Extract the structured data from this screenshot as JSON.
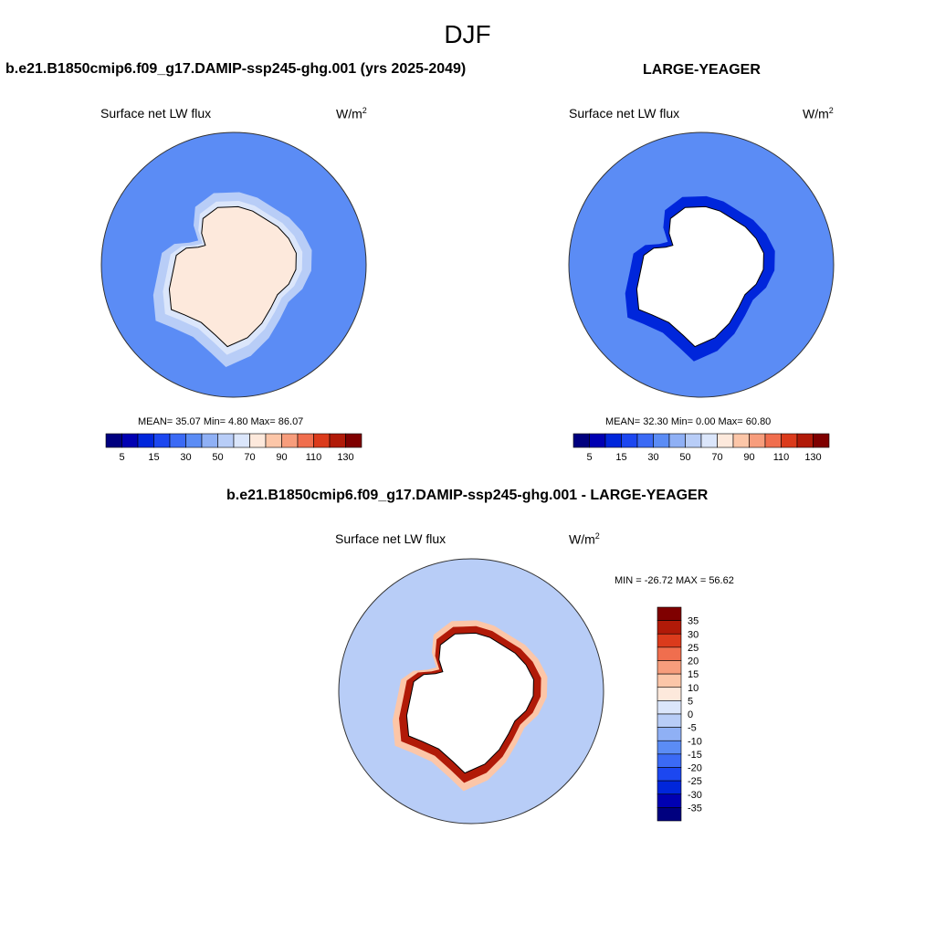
{
  "figure": {
    "title": "DJF"
  },
  "panels": [
    {
      "id": "model",
      "title": "b.e21.B1850cmip6.f09_g17.DAMIP-ssp245-ghg.001 (yrs 2025-2049)",
      "variable": "Surface net LW flux",
      "units_base": "W/m",
      "units_exp": "2",
      "stats_text": "MEAN=  35.07  Min=   4.80  Max=  86.07"
    },
    {
      "id": "obs",
      "title": "LARGE-YEAGER",
      "variable": "Surface net LW flux",
      "units_base": "W/m",
      "units_exp": "2",
      "stats_text": "MEAN=  32.30  Min=   0.00  Max=  60.80"
    },
    {
      "id": "diff",
      "title": "b.e21.B1850cmip6.f09_g17.DAMIP-ssp245-ghg.001 - LARGE-YEAGER",
      "variable": "Surface net LW flux",
      "units_base": "W/m",
      "units_exp": "2",
      "stats_text": "MIN = -26.72 MAX =  56.62"
    }
  ],
  "chart_data": [
    {
      "type": "heatmap",
      "projection": "south polar stereographic",
      "title": "b.e21.B1850cmip6.f09_g17.DAMIP-ssp245-ghg.001 (yrs 2025-2049)",
      "variable": "Surface net LW flux",
      "units": "W/m2",
      "mean": 35.07,
      "min": 4.8,
      "max": 86.07,
      "colorbar": {
        "orientation": "horizontal",
        "levels": [
          5,
          10,
          15,
          20,
          30,
          40,
          50,
          60,
          70,
          80,
          90,
          100,
          110,
          120,
          130
        ],
        "tick_labels": [
          "5",
          "15",
          "30",
          "50",
          "70",
          "90",
          "110",
          "130"
        ],
        "colors": [
          "#00007f",
          "#0000b2",
          "#0026db",
          "#1c47f0",
          "#3b6af5",
          "#5b8cf5",
          "#8fb0f5",
          "#b8cdf7",
          "#dbe6fb",
          "#fde9dc",
          "#fcc6a8",
          "#f79d7c",
          "#f06e4e",
          "#db3b1c",
          "#b11a08",
          "#7f0000"
        ]
      },
      "dominant_values": {
        "ocean": 30,
        "sea_ice_margin": 50,
        "antarctic_continent": 70
      }
    },
    {
      "type": "heatmap",
      "projection": "south polar stereographic",
      "title": "LARGE-YEAGER",
      "variable": "Surface net LW flux",
      "units": "W/m2",
      "mean": 32.3,
      "min": 0.0,
      "max": 60.8,
      "colorbar": {
        "orientation": "horizontal",
        "levels": [
          5,
          10,
          15,
          20,
          30,
          40,
          50,
          60,
          70,
          80,
          90,
          100,
          110,
          120,
          130
        ],
        "tick_labels": [
          "5",
          "15",
          "30",
          "50",
          "70",
          "90",
          "110",
          "130"
        ],
        "colors": [
          "#00007f",
          "#0000b2",
          "#0026db",
          "#1c47f0",
          "#3b6af5",
          "#5b8cf5",
          "#8fb0f5",
          "#b8cdf7",
          "#dbe6fb",
          "#fde9dc",
          "#fcc6a8",
          "#f79d7c",
          "#f06e4e",
          "#db3b1c",
          "#b11a08",
          "#7f0000"
        ]
      },
      "dominant_values": {
        "ocean": 30,
        "coastal_minimum": 10
      },
      "missing_over": "Antarctic continent"
    },
    {
      "type": "heatmap",
      "projection": "south polar stereographic",
      "title": "b.e21.B1850cmip6.f09_g17.DAMIP-ssp245-ghg.001 - LARGE-YEAGER",
      "variable": "Surface net LW flux",
      "units": "W/m2",
      "min": -26.72,
      "max": 56.62,
      "colorbar": {
        "orientation": "vertical",
        "levels": [
          -35,
          -30,
          -25,
          -20,
          -15,
          -10,
          -5,
          0,
          5,
          10,
          15,
          20,
          25,
          30,
          35
        ],
        "tick_labels": [
          "35",
          "30",
          "25",
          "20",
          "15",
          "10",
          "5",
          "0",
          "-5",
          "-10",
          "-15",
          "-20",
          "-25",
          "-30",
          "-35"
        ],
        "colors": [
          "#00007f",
          "#0000b2",
          "#0026db",
          "#1c47f0",
          "#3b6af5",
          "#5b8cf5",
          "#8fb0f5",
          "#b8cdf7",
          "#dbe6fb",
          "#fde9dc",
          "#fcc6a8",
          "#f79d7c",
          "#f06e4e",
          "#db3b1c",
          "#b11a08",
          "#7f0000"
        ]
      },
      "dominant_values": {
        "ocean": -5,
        "coastal_ring": 30
      },
      "missing_over": "Antarctic continent"
    }
  ]
}
